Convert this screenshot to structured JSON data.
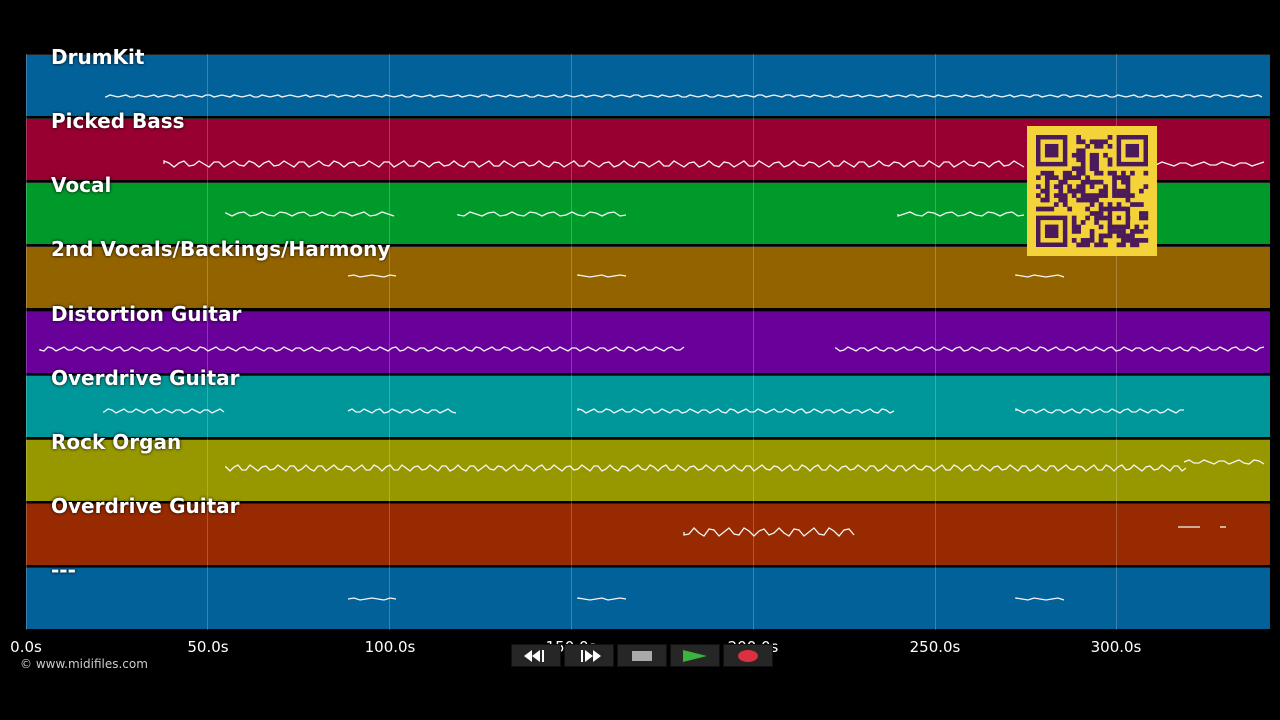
{
  "tracks": [
    {
      "name": "DrumKit",
      "color": "#03619a"
    },
    {
      "name": "Picked Bass",
      "color": "#970030"
    },
    {
      "name": "Vocal",
      "color": "#009a2a"
    },
    {
      "name": "2nd Vocals/Backings/Harmony",
      "color": "#936300"
    },
    {
      "name": "Distortion Guitar",
      "color": "#6a009a"
    },
    {
      "name": "Overdrive Guitar",
      "color": "#00979a"
    },
    {
      "name": "Rock Organ",
      "color": "#979800"
    },
    {
      "name": "Overdrive Guitar",
      "color": "#972a00"
    },
    {
      "name": "---",
      "color": "#03619a"
    }
  ],
  "timeline": {
    "ticks": [
      "0.0s",
      "50.0s",
      "100.0s",
      "150.0s",
      "200.0s",
      "250.0s",
      "300.0s"
    ]
  },
  "copyright": "© www.midifiles.com",
  "transport": {
    "buttons": [
      {
        "name": "rewind-button",
        "icon": "rewind-icon"
      },
      {
        "name": "fast-forward-button",
        "icon": "fast-forward-icon"
      },
      {
        "name": "stop-button",
        "icon": "stop-icon"
      },
      {
        "name": "play-button",
        "icon": "play-icon",
        "color": "#3cb33c"
      },
      {
        "name": "record-button",
        "icon": "record-icon",
        "color": "#d9313f"
      }
    ]
  },
  "qr_code": {
    "icon": "qr-code-icon",
    "fg": "#4a1a5a",
    "bg": "#f3d23a"
  }
}
